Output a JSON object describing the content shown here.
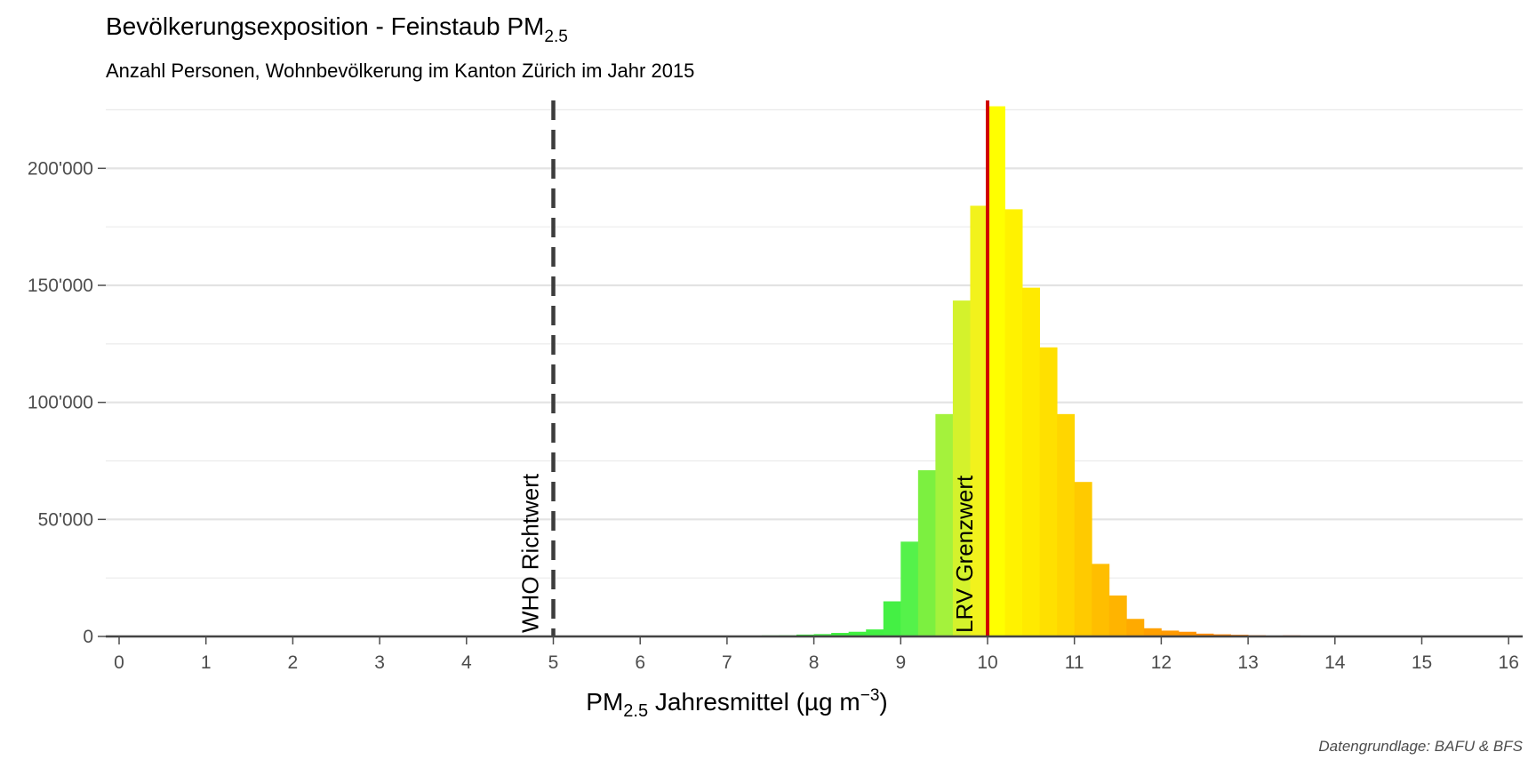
{
  "chart_data": {
    "type": "bar",
    "title": "Bevölkerungsexposition - Feinstaub PM",
    "title_subscript": "2.5",
    "subtitle": "Anzahl Personen, Wohnbevölkerung im Kanton Zürich im Jahr 2015",
    "xlabel": {
      "prefix": "PM",
      "subscript": "2.5",
      "middle": " Jahresmittel (µg m",
      "superscript": "−3",
      "suffix": ")"
    },
    "caption": "Datengrundlage: BAFU & BFS",
    "xlim": [
      0,
      16
    ],
    "ylim": [
      0,
      228000
    ],
    "x_ticks": [
      0,
      1,
      2,
      3,
      4,
      5,
      6,
      7,
      8,
      9,
      10,
      11,
      12,
      13,
      14,
      15,
      16
    ],
    "x_tick_labels": [
      "0",
      "1",
      "2",
      "3",
      "4",
      "5",
      "6",
      "7",
      "8",
      "9",
      "10",
      "11",
      "12",
      "13",
      "14",
      "15",
      "16"
    ],
    "y_ticks": [
      0,
      50000,
      100000,
      150000,
      200000
    ],
    "y_tick_labels": [
      "0",
      "50'000",
      "100'000",
      "150'000",
      "200'000"
    ],
    "grid": true,
    "bin_width": 0.2,
    "bins": [
      {
        "x": 7.4,
        "value": 400,
        "color": "#3ee63e"
      },
      {
        "x": 7.6,
        "value": 500,
        "color": "#3ee83e"
      },
      {
        "x": 7.8,
        "value": 800,
        "color": "#3eea3e"
      },
      {
        "x": 8.0,
        "value": 1000,
        "color": "#3eec3e"
      },
      {
        "x": 8.2,
        "value": 1500,
        "color": "#3eee3e"
      },
      {
        "x": 8.4,
        "value": 2000,
        "color": "#40f040"
      },
      {
        "x": 8.6,
        "value": 3000,
        "color": "#42f042"
      },
      {
        "x": 8.8,
        "value": 15000,
        "color": "#44f044"
      },
      {
        "x": 9.0,
        "value": 40500,
        "color": "#55f24a"
      },
      {
        "x": 9.2,
        "value": 71000,
        "color": "#7cf040"
      },
      {
        "x": 9.4,
        "value": 95000,
        "color": "#a4f23c"
      },
      {
        "x": 9.6,
        "value": 143500,
        "color": "#d4f22c"
      },
      {
        "x": 9.8,
        "value": 184000,
        "color": "#f2f21c"
      },
      {
        "x": 10.0,
        "value": 226500,
        "color": "#ffff00"
      },
      {
        "x": 10.2,
        "value": 182500,
        "color": "#fff200"
      },
      {
        "x": 10.4,
        "value": 149000,
        "color": "#ffea00"
      },
      {
        "x": 10.6,
        "value": 123500,
        "color": "#ffe000"
      },
      {
        "x": 10.8,
        "value": 95000,
        "color": "#ffd600"
      },
      {
        "x": 11.0,
        "value": 66000,
        "color": "#ffca00"
      },
      {
        "x": 11.2,
        "value": 31000,
        "color": "#ffbe00"
      },
      {
        "x": 11.4,
        "value": 17500,
        "color": "#ffb400"
      },
      {
        "x": 11.6,
        "value": 7500,
        "color": "#ffaa00"
      },
      {
        "x": 11.8,
        "value": 3500,
        "color": "#ffa000"
      },
      {
        "x": 12.0,
        "value": 2500,
        "color": "#ff9a00"
      },
      {
        "x": 12.2,
        "value": 2000,
        "color": "#ff9400"
      },
      {
        "x": 12.4,
        "value": 1200,
        "color": "#ff8c00"
      },
      {
        "x": 12.6,
        "value": 900,
        "color": "#ff8400"
      },
      {
        "x": 12.8,
        "value": 700,
        "color": "#ff7c00"
      },
      {
        "x": 13.0,
        "value": 500,
        "color": "#ff7400"
      },
      {
        "x": 13.4,
        "value": 300,
        "color": "#ff5a00"
      }
    ],
    "reference_lines": [
      {
        "x": 5,
        "label": "WHO Richtwert",
        "style": "dashed",
        "color": "#3c3c3c"
      },
      {
        "x": 10,
        "label": "LRV Grenzwert",
        "style": "solid",
        "color": "#d00000"
      }
    ]
  }
}
